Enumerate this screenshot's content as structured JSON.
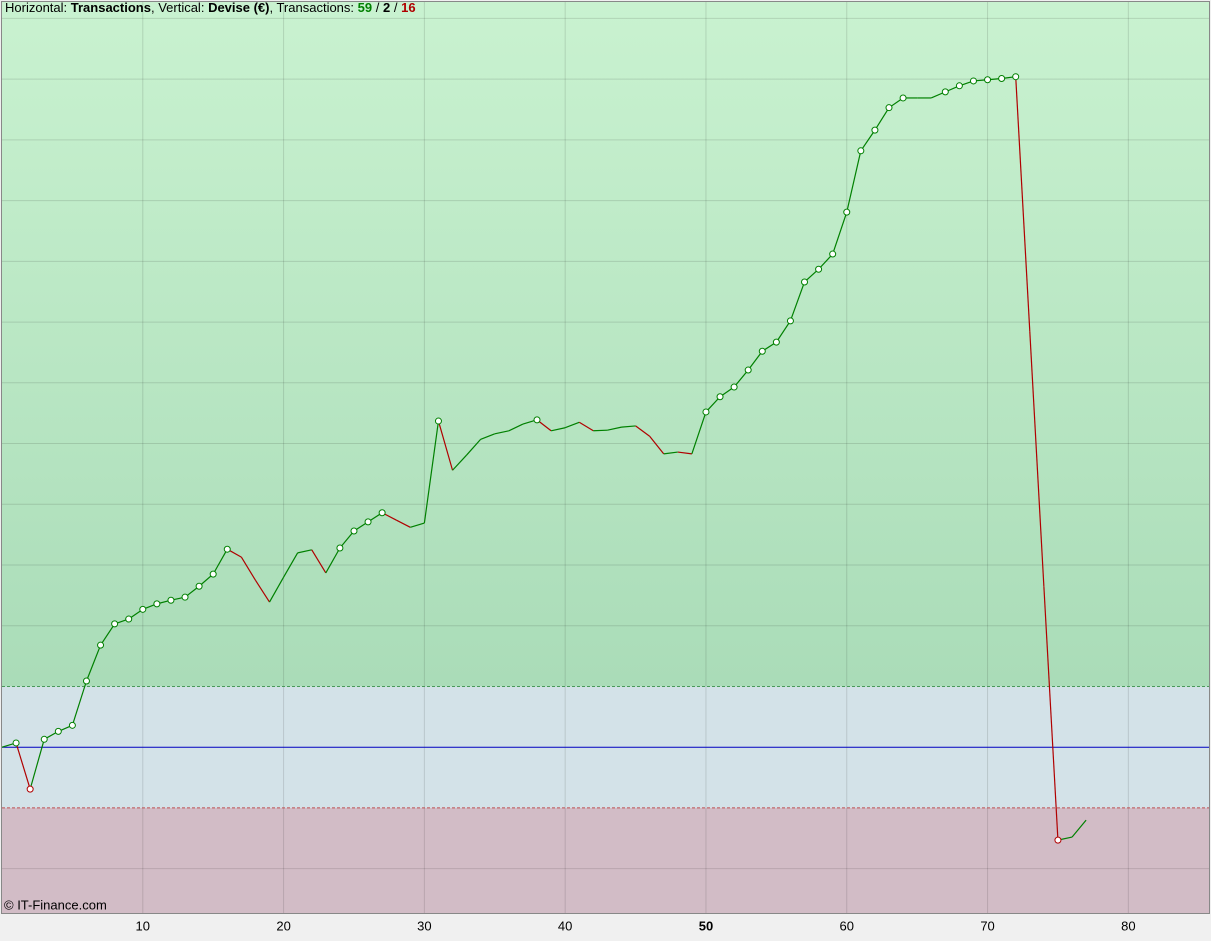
{
  "chart_data": {
    "type": "line",
    "title_parts": {
      "horizontal_label": "Horizontal:",
      "horizontal": "Transactions",
      "vertical_label": ", Vertical:",
      "vertical": "Devise (€)",
      "transactions_label": ", Transactions:",
      "wins": 59,
      "even": 2,
      "losses": 16,
      "separator": "/"
    },
    "copyright": "© IT-Finance.com",
    "x": [
      0,
      1,
      2,
      3,
      4,
      5,
      6,
      7,
      8,
      9,
      10,
      11,
      12,
      13,
      14,
      15,
      16,
      17,
      18,
      19,
      20,
      21,
      22,
      23,
      24,
      25,
      26,
      27,
      28,
      29,
      30,
      31,
      32,
      33,
      34,
      35,
      36,
      37,
      38,
      39,
      40,
      41,
      42,
      43,
      44,
      45,
      46,
      47,
      48,
      49,
      50,
      51,
      52,
      53,
      54,
      55,
      56,
      57,
      58,
      59,
      60,
      61,
      62,
      63,
      64,
      65,
      66,
      67,
      68,
      69,
      70,
      71,
      72,
      73,
      74,
      75,
      76,
      77
    ],
    "values": [
      0,
      0.07,
      -0.69,
      0.13,
      0.26,
      0.36,
      1.09,
      1.68,
      2.03,
      2.11,
      2.27,
      2.36,
      2.42,
      2.47,
      2.65,
      2.85,
      3.26,
      3.13,
      2.75,
      2.39,
      2.8,
      3.2,
      3.25,
      2.87,
      3.28,
      3.56,
      3.71,
      3.86,
      3.74,
      3.62,
      3.69,
      5.37,
      4.56,
      4.81,
      5.07,
      5.16,
      5.21,
      5.32,
      5.39,
      5.21,
      5.26,
      5.35,
      5.21,
      5.22,
      5.27,
      5.29,
      5.12,
      4.83,
      4.86,
      4.83,
      5.52,
      5.77,
      5.93,
      6.21,
      6.52,
      6.67,
      7.02,
      7.66,
      7.87,
      8.12,
      8.81,
      9.82,
      10.16,
      10.53,
      10.69,
      10.69,
      10.69,
      10.79,
      10.89,
      10.97,
      10.99,
      11.01,
      11.04,
      6.85,
      2.65,
      -1.53,
      -1.48,
      -1.2
    ],
    "up_color": "#008000",
    "down_color": "#b00000",
    "baseline_color": "#0000c0",
    "xlim": [
      0,
      85.8
    ],
    "ylim": [
      -2.73,
      12.27
    ],
    "xticks": [
      10,
      20,
      30,
      40,
      50,
      60,
      70,
      80
    ],
    "highlight_xtick": 50,
    "yticks": [
      -2,
      -1,
      0,
      1,
      2,
      3,
      4,
      5,
      6,
      7,
      8,
      9,
      10,
      11,
      12
    ],
    "baseline": 0,
    "upper_band": 1,
    "lower_band": -1,
    "grid": true
  }
}
